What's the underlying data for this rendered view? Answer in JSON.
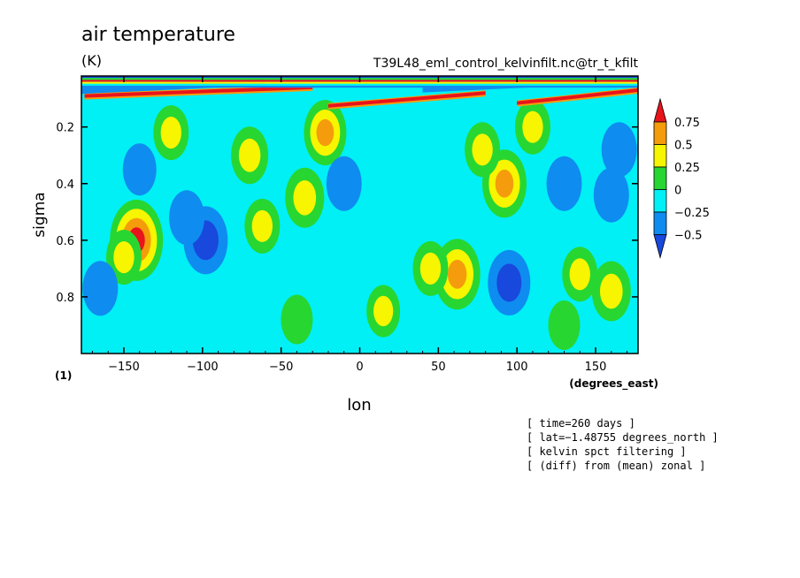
{
  "chart_data": {
    "type": "heatmap",
    "title": "air temperature",
    "units": "(K)",
    "source": "T39L48_eml_control_kelvinfilt.nc@tr_t_kfilt",
    "xlabel": "lon",
    "ylabel": "sigma",
    "x_units": "(degrees_east)",
    "y_units": "(1)",
    "xlim": [
      -177,
      177
    ],
    "ylim": [
      1.0,
      0.02
    ],
    "x_ticks": [
      -150,
      -100,
      -50,
      0,
      50,
      100,
      150
    ],
    "x_tick_labels": [
      "−150",
      "−100",
      "−50",
      "0",
      "50",
      "100",
      "150"
    ],
    "y_ticks": [
      0.2,
      0.4,
      0.6,
      0.8
    ],
    "y_tick_labels": [
      "0.2",
      "0.4",
      "0.6",
      "0.8"
    ],
    "colorbar": {
      "levels": [
        0.75,
        0.5,
        0.25,
        0,
        -0.25,
        -0.5
      ],
      "labels": [
        "0.75",
        "0.5",
        "0.25",
        "0",
        "−0.25",
        "−0.5"
      ],
      "colors": [
        "#e8141c",
        "#f59c0c",
        "#f7f500",
        "#27d631",
        "#00f0f5",
        "#0f8cf0",
        "#1848dc"
      ]
    },
    "info_lines": [
      "[ time=260 days ]",
      "[ lat=−1.48755 degrees_north ]",
      "[ kelvin spct filtering ]",
      "[ (diff) from (mean) zonal ]"
    ],
    "bands": [
      {
        "lon": [
          -175,
          -30
        ],
        "sigma": [
          0.06,
          0.075
        ],
        "value": 0.8
      },
      {
        "lon": [
          -20,
          80
        ],
        "sigma": [
          0.08,
          0.11
        ],
        "value": 0.8
      },
      {
        "lon": [
          100,
          177
        ],
        "sigma": [
          0.07,
          0.1
        ],
        "value": 0.8
      },
      {
        "lon": [
          -177,
          -60
        ],
        "sigma": [
          0.04,
          0.055
        ],
        "value": -0.4
      },
      {
        "lon": [
          40,
          177
        ],
        "sigma": [
          0.03,
          0.05
        ],
        "value": -0.4
      }
    ],
    "features": [
      {
        "lon": -142,
        "sigma": 0.6,
        "value": 0.8
      },
      {
        "lon": -150,
        "sigma": 0.66,
        "value": 0.3
      },
      {
        "lon": -98,
        "sigma": 0.6,
        "value": -0.55
      },
      {
        "lon": -110,
        "sigma": 0.52,
        "value": -0.3
      },
      {
        "lon": -70,
        "sigma": 0.3,
        "value": 0.35
      },
      {
        "lon": -62,
        "sigma": 0.55,
        "value": 0.3
      },
      {
        "lon": -35,
        "sigma": 0.45,
        "value": 0.4
      },
      {
        "lon": -22,
        "sigma": 0.22,
        "value": 0.5
      },
      {
        "lon": -10,
        "sigma": 0.4,
        "value": -0.3
      },
      {
        "lon": 25,
        "sigma": 0.48,
        "value": -0.2
      },
      {
        "lon": 62,
        "sigma": 0.72,
        "value": 0.6
      },
      {
        "lon": 45,
        "sigma": 0.7,
        "value": 0.3
      },
      {
        "lon": 92,
        "sigma": 0.4,
        "value": 0.55
      },
      {
        "lon": 78,
        "sigma": 0.28,
        "value": 0.3
      },
      {
        "lon": 95,
        "sigma": 0.75,
        "value": -0.5
      },
      {
        "lon": 130,
        "sigma": 0.4,
        "value": -0.3
      },
      {
        "lon": 160,
        "sigma": 0.44,
        "value": -0.3
      },
      {
        "lon": 140,
        "sigma": 0.72,
        "value": 0.3
      },
      {
        "lon": 160,
        "sigma": 0.78,
        "value": 0.4
      },
      {
        "lon": -165,
        "sigma": 0.77,
        "value": -0.3
      },
      {
        "lon": 110,
        "sigma": 0.2,
        "value": 0.3
      },
      {
        "lon": 165,
        "sigma": 0.28,
        "value": -0.3
      },
      {
        "lon": -140,
        "sigma": 0.35,
        "value": -0.25
      },
      {
        "lon": -120,
        "sigma": 0.22,
        "value": 0.3
      },
      {
        "lon": 15,
        "sigma": 0.85,
        "value": 0.25
      },
      {
        "lon": -40,
        "sigma": 0.88,
        "value": 0.2
      },
      {
        "lon": 130,
        "sigma": 0.9,
        "value": 0.2
      }
    ]
  }
}
